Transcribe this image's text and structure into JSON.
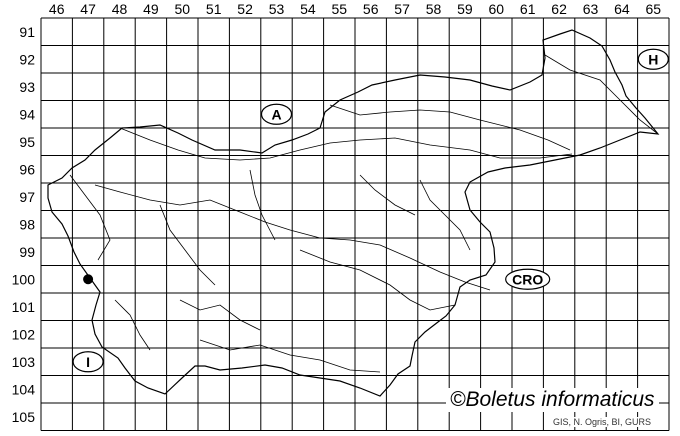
{
  "columns": [
    "46",
    "47",
    "48",
    "49",
    "50",
    "51",
    "52",
    "53",
    "54",
    "55",
    "56",
    "57",
    "58",
    "59",
    "60",
    "61",
    "62",
    "63",
    "64",
    "65"
  ],
  "rows": [
    "91",
    "92",
    "93",
    "94",
    "95",
    "96",
    "97",
    "98",
    "99",
    "100",
    "101",
    "102",
    "103",
    "104",
    "105"
  ],
  "country_markers": [
    {
      "label": "A",
      "col": "53",
      "row": "94"
    },
    {
      "label": "H",
      "col": "65",
      "row": "92"
    },
    {
      "label": "CRO",
      "col": "61",
      "row": "100"
    },
    {
      "label": "I",
      "col": "47",
      "row": "103"
    }
  ],
  "records": [
    {
      "col": "47",
      "row": "100"
    }
  ],
  "colors": {
    "grid": "#000000",
    "record": "#000000",
    "background": "#ffffff"
  },
  "copyright": "©Boletus informaticus",
  "credit": "GIS, N. Ogris, BI, GURS"
}
